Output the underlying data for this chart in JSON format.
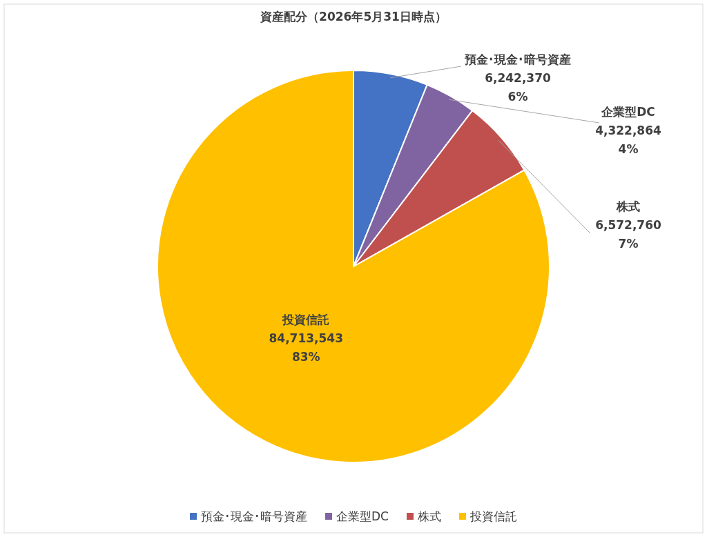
{
  "chart_data": {
    "type": "pie",
    "title": "資産配分（2026年5月31日時点）",
    "categories": [
      "預金･現金･暗号資産",
      "企業型DC",
      "株式",
      "投資信託"
    ],
    "values": [
      6242370,
      4322864,
      6572760,
      84713543
    ],
    "colors": [
      "#4472c4",
      "#8064a2",
      "#c0504d",
      "#ffc000"
    ],
    "value_labels": [
      "6,242,370\n6%",
      "4,322,864\n4%",
      "6,572,760\n7%",
      "84,713,543\n83%"
    ],
    "legend": "bottom"
  }
}
